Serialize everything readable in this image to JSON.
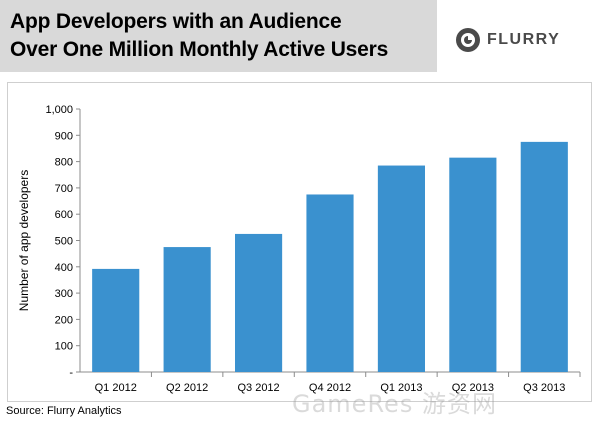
{
  "header": {
    "title_line1": "App Developers with an Audience",
    "title_line2": "Over One Million Monthly Active Users",
    "logo_text": "FLURRY",
    "logo_icon": "flurry-swirl-icon"
  },
  "source": "Source: Flurry Analytics",
  "watermark": "GameRes 游资网",
  "chart_data": {
    "type": "bar",
    "title": "",
    "xlabel": "",
    "ylabel": "Number of app developers",
    "categories": [
      "Q1 2012",
      "Q2 2012",
      "Q3 2012",
      "Q4 2012",
      "Q1 2013",
      "Q2 2013",
      "Q3 2013"
    ],
    "values": [
      392,
      475,
      525,
      675,
      785,
      815,
      875
    ],
    "ylim": [
      0,
      1000
    ],
    "y_ticks": [
      0,
      100,
      200,
      300,
      400,
      500,
      600,
      700,
      800,
      900,
      1000
    ],
    "y_tick_labels": [
      "-",
      "100",
      "200",
      "300",
      "400",
      "500",
      "600",
      "700",
      "800",
      "900",
      "1,000"
    ],
    "grid": false,
    "bar_color": "#3a91cf"
  }
}
